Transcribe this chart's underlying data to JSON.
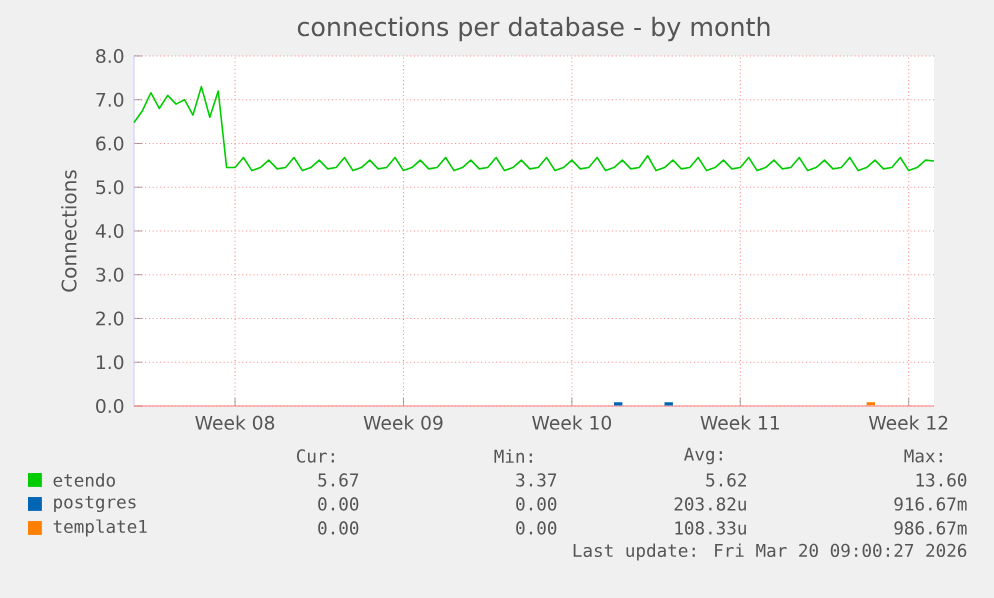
{
  "chart_data": {
    "type": "line",
    "title": "connections per database - by month",
    "ylabel": "Connections",
    "categories": [
      null,
      null,
      null,
      null,
      null,
      null,
      null,
      null,
      null,
      null,
      null,
      null,
      "Week 08",
      null,
      null,
      null,
      null,
      null,
      null,
      null,
      null,
      null,
      null,
      null,
      null,
      null,
      null,
      null,
      null,
      null,
      null,
      null,
      "Week 09",
      null,
      null,
      null,
      null,
      null,
      null,
      null,
      null,
      null,
      null,
      null,
      null,
      null,
      null,
      null,
      null,
      null,
      null,
      null,
      "Week 10",
      null,
      null,
      null,
      null,
      null,
      null,
      null,
      null,
      null,
      null,
      null,
      null,
      null,
      null,
      null,
      null,
      null,
      null,
      null,
      "Week 11",
      null,
      null,
      null,
      null,
      null,
      null,
      null,
      null,
      null,
      null,
      null,
      null,
      null,
      null,
      null,
      null,
      null,
      null,
      null,
      "Week 12",
      null,
      null,
      null
    ],
    "ylim": [
      0,
      8
    ],
    "yticks": [
      {
        "value": 0,
        "label": "0.0"
      },
      {
        "value": 1,
        "label": "1.0"
      },
      {
        "value": 2,
        "label": "2.0"
      },
      {
        "value": 3,
        "label": "3.0"
      },
      {
        "value": 4,
        "label": "4.0"
      },
      {
        "value": 5,
        "label": "5.0"
      },
      {
        "value": 6,
        "label": "6.0"
      },
      {
        "value": 7,
        "label": "7.0"
      },
      {
        "value": 8,
        "label": "8.0"
      }
    ],
    "grid": true,
    "legend": "bottom left",
    "marker": "none",
    "line_style": "solid",
    "series": [
      {
        "name": "etendo",
        "color": "#00cc00",
        "values": [
          6.48,
          6.75,
          7.16,
          6.8,
          7.1,
          6.9,
          7.0,
          6.65,
          7.3,
          6.6,
          7.2,
          5.45,
          5.45,
          5.68,
          5.38,
          5.45,
          5.62,
          5.42,
          5.45,
          5.68,
          5.38,
          5.45,
          5.62,
          5.42,
          5.45,
          5.68,
          5.38,
          5.45,
          5.62,
          5.42,
          5.45,
          5.68,
          5.38,
          5.45,
          5.62,
          5.42,
          5.45,
          5.68,
          5.38,
          5.45,
          5.62,
          5.42,
          5.45,
          5.68,
          5.38,
          5.45,
          5.62,
          5.42,
          5.45,
          5.68,
          5.38,
          5.45,
          5.62,
          5.42,
          5.45,
          5.68,
          5.38,
          5.45,
          5.62,
          5.42,
          5.45,
          5.72,
          5.38,
          5.45,
          5.62,
          5.42,
          5.45,
          5.68,
          5.38,
          5.45,
          5.62,
          5.42,
          5.45,
          5.68,
          5.38,
          5.45,
          5.62,
          5.42,
          5.45,
          5.68,
          5.38,
          5.45,
          5.62,
          5.42,
          5.45,
          5.68,
          5.38,
          5.45,
          5.62,
          5.42,
          5.45,
          5.68,
          5.38,
          5.45,
          5.62,
          5.6
        ]
      },
      {
        "name": "postgres",
        "color": "#0066b3",
        "values": [
          null,
          null,
          null,
          null,
          null,
          null,
          null,
          null,
          null,
          null,
          null,
          null,
          null,
          null,
          null,
          null,
          null,
          null,
          null,
          null,
          null,
          null,
          null,
          null,
          null,
          null,
          null,
          null,
          null,
          null,
          null,
          null,
          null,
          null,
          null,
          null,
          null,
          null,
          null,
          null,
          null,
          null,
          null,
          null,
          null,
          null,
          null,
          null,
          null,
          null,
          null,
          null,
          null,
          null,
          null,
          null,
          null,
          0.05,
          0.05,
          null,
          null,
          null,
          null,
          0.05,
          0.05,
          null,
          null,
          null,
          null,
          null,
          null,
          null,
          null,
          null,
          null,
          null,
          null,
          null,
          null,
          null,
          null,
          null,
          null,
          null,
          null,
          null,
          null,
          null,
          null,
          null,
          null,
          null,
          null,
          null,
          null,
          null
        ]
      },
      {
        "name": "template1",
        "color": "#ff8000",
        "values": [
          null,
          null,
          null,
          null,
          null,
          null,
          null,
          null,
          null,
          null,
          null,
          null,
          null,
          null,
          null,
          null,
          null,
          null,
          null,
          null,
          null,
          null,
          null,
          null,
          null,
          null,
          null,
          null,
          null,
          null,
          null,
          null,
          null,
          null,
          null,
          null,
          null,
          null,
          null,
          null,
          null,
          null,
          null,
          null,
          null,
          null,
          null,
          null,
          null,
          null,
          null,
          null,
          null,
          null,
          null,
          null,
          null,
          null,
          null,
          null,
          null,
          null,
          null,
          null,
          null,
          null,
          null,
          null,
          null,
          null,
          null,
          null,
          null,
          null,
          null,
          null,
          null,
          null,
          null,
          null,
          null,
          null,
          null,
          null,
          null,
          null,
          null,
          0.05,
          0.05,
          null,
          null,
          null,
          null,
          null,
          null,
          null
        ]
      }
    ],
    "annotations": [
      "Cur:",
      "Min:",
      "Avg:",
      "Max:",
      "5.67",
      "3.37",
      "5.62",
      "13.60",
      "0.00",
      "0.00",
      "203.82u",
      "916.67m",
      "0.00",
      "0.00",
      "108.33u",
      "986.67m",
      "Last update: Fri Mar 20 09:00:27 2026"
    ]
  }
}
